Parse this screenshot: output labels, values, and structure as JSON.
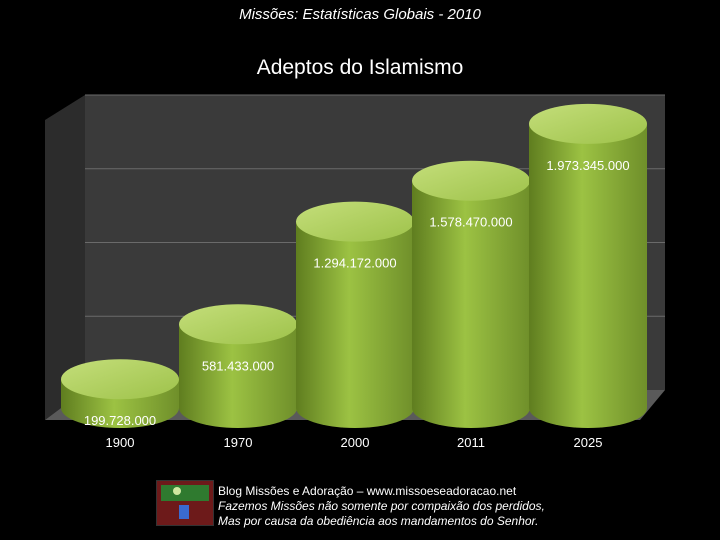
{
  "header": {
    "subtitle": "Missões: Estatísticas Globais - 2010"
  },
  "chart_data": {
    "type": "bar",
    "title": "Adeptos do Islamismo",
    "categories": [
      "1900",
      "1970",
      "2000",
      "2011",
      "2025"
    ],
    "values": [
      199728000,
      581433000,
      1294172000,
      1578470000,
      1973345000
    ],
    "value_labels": [
      "199.728.000",
      "581.433.000",
      "1.294.172.000",
      "1.578.470.000",
      "1.973.345.000"
    ],
    "xlabel": "",
    "ylabel": "",
    "ylim": [
      0,
      2000000000
    ],
    "grid": true,
    "legend": "none",
    "colors": {
      "bar_face": "#8eb33a",
      "bar_top": "#b8d46a",
      "bar_dark": "#5f7d1f",
      "wall": "#3a3a3a",
      "floor": "#555555",
      "grid": "#6a6a6a"
    }
  },
  "footer": {
    "line1": "Blog Missões e Adoração – www.missoeseadoracao.net",
    "line2": "Fazemos Missões não somente por compaixão dos perdidos,",
    "line3": "Mas por causa da obediência aos mandamentos do Senhor.",
    "logo_icon": "globe-missions-icon"
  }
}
